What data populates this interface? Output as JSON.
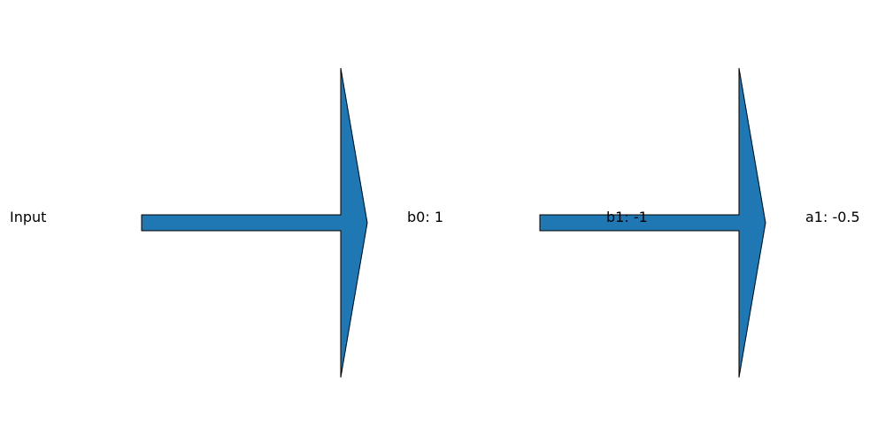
{
  "labels": {
    "input": "Input",
    "b0": "b0: 1",
    "b1": "b1: -1",
    "a1": "a1: -0.5"
  },
  "style": {
    "arrow_fill": "#1f77b4",
    "arrow_stroke": "#000000"
  }
}
